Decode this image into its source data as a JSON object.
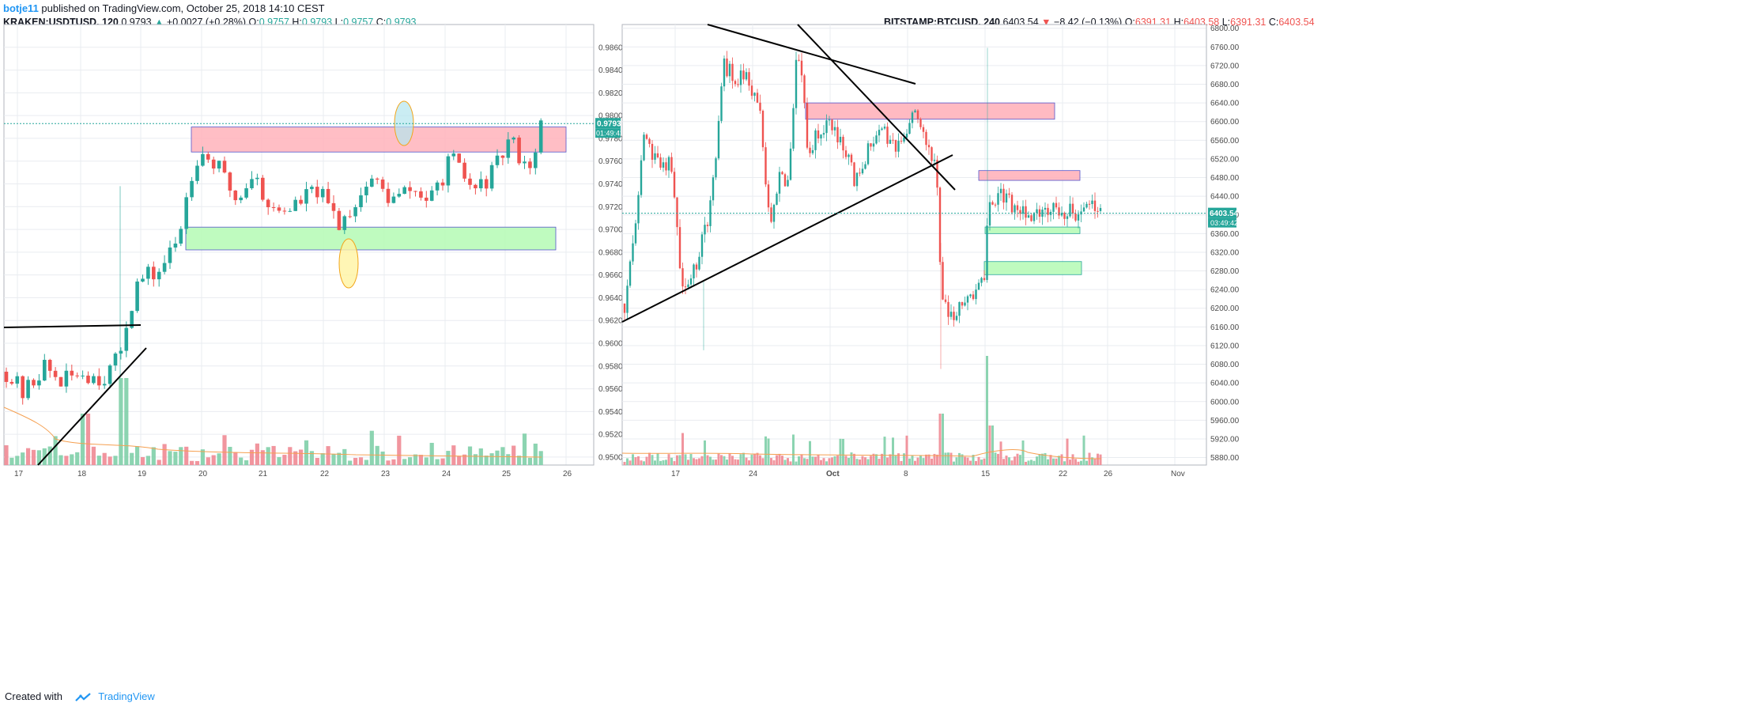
{
  "header": {
    "user": "botje11",
    "published": "published on TradingView.com, October 25, 2018 14:10 CEST"
  },
  "footer": {
    "created_with": "Created with",
    "brand": "TradingView"
  },
  "left": {
    "symbol": "KRAKEN:USDTUSD, 120",
    "last": "0.9793",
    "change_arrow": "▲",
    "change": "+0.0027 (+0.28%)",
    "o_label": "O:",
    "o": "0.9757",
    "h_label": "H:",
    "h": "0.9793",
    "l_label": "L:",
    "l": "0.9757",
    "c_label": "C:",
    "c": "0.9793",
    "price_badge": "0.9793",
    "countdown_badge": "01:49:42"
  },
  "right": {
    "symbol": "BITSTAMP:BTCUSD, 240",
    "last": "6403.54",
    "change_arrow": "▼",
    "change": "−8.42 (−0.13%)",
    "o_label": "O:",
    "o": "6391.31",
    "h_label": "H:",
    "h": "6403.58",
    "l_label": "L:",
    "l": "6391.31",
    "c_label": "C:",
    "c": "6403.54",
    "price_badge": "6403.54",
    "countdown_badge": "03:49:42"
  },
  "colors": {
    "up": "#26a69a",
    "down": "#ef5350",
    "volume_up": "#7fcfa8",
    "volume_down": "#f08a93",
    "resistance_zone": "#ffb3bb",
    "support_zone": "#b8fbb8",
    "zone_border": "#5555cc",
    "ma_line": "#f5a051",
    "grid": "#e9ecf0"
  },
  "chart_data": [
    {
      "type": "candlestick",
      "symbol": "KRAKEN:USDTUSD",
      "interval": "120",
      "x_tick_labels": [
        "17",
        "18",
        "19",
        "20",
        "21",
        "22",
        "23",
        "24",
        "25",
        "26"
      ],
      "y_tick_labels": [
        "0.9500",
        "0.9520",
        "0.9540",
        "0.9560",
        "0.9580",
        "0.9600",
        "0.9620",
        "0.9640",
        "0.9660",
        "0.9680",
        "0.9700",
        "0.9720",
        "0.9740",
        "0.9760",
        "0.9780",
        "0.9800",
        "0.9820",
        "0.9840",
        "0.9860"
      ],
      "ylim": [
        0.9493,
        0.988
      ],
      "last_price": 0.9793,
      "zones": [
        {
          "kind": "resistance",
          "from": 0.9768,
          "to": 0.979
        },
        {
          "kind": "support",
          "from": 0.9682,
          "to": 0.9702
        }
      ],
      "grid": true
    },
    {
      "type": "candlestick",
      "symbol": "BITSTAMP:BTCUSD",
      "interval": "240",
      "x_tick_labels": [
        "17",
        "24",
        "Oct",
        "8",
        "15",
        "22",
        "26",
        "Nov"
      ],
      "y_tick_labels": [
        "5880.00",
        "5920.00",
        "5960.00",
        "6000.00",
        "6040.00",
        "6080.00",
        "6120.00",
        "6160.00",
        "6200.00",
        "6240.00",
        "6280.00",
        "6320.00",
        "6360.00",
        "6400.00",
        "6440.00",
        "6480.00",
        "6520.00",
        "6560.00",
        "6600.00",
        "6640.00",
        "6680.00",
        "6720.00",
        "6760.00",
        "6800.00"
      ],
      "ylim": [
        5864,
        6808
      ],
      "last_price": 6403.54,
      "zones": [
        {
          "kind": "resistance",
          "from": 6605,
          "to": 6640
        },
        {
          "kind": "resistance",
          "from": 6474,
          "to": 6495
        },
        {
          "kind": "support",
          "from": 6360,
          "to": 6374
        },
        {
          "kind": "support",
          "from": 6272,
          "to": 6300
        }
      ],
      "grid": true
    }
  ]
}
